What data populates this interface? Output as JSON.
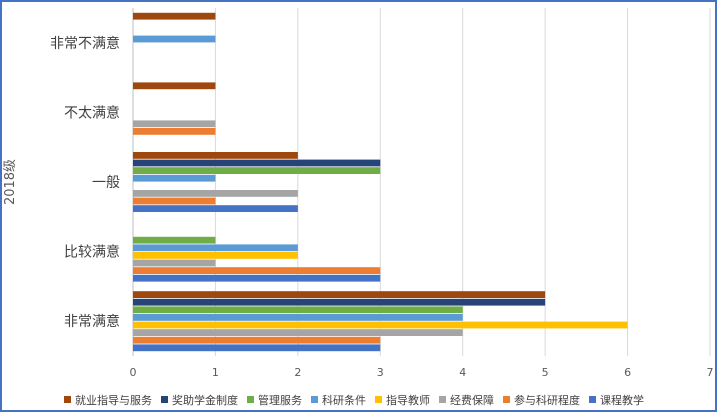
{
  "chart_data": {
    "type": "bar",
    "orientation": "horizontal",
    "ylabel": "2018级",
    "categories": [
      "非常不满意",
      "不太满意",
      "一般",
      "比较满意",
      "非常满意"
    ],
    "xlim": [
      0,
      7
    ],
    "xticks": [
      0,
      1,
      2,
      3,
      4,
      5,
      6,
      7
    ],
    "grid": true,
    "legend_position": "bottom",
    "series": [
      {
        "name": "就业指导与服务",
        "color": "#9e480e",
        "values": [
          1,
          1,
          2,
          0,
          5
        ]
      },
      {
        "name": "奖助学金制度",
        "color": "#264478",
        "values": [
          0,
          0,
          3,
          0,
          5
        ]
      },
      {
        "name": "管理服务",
        "color": "#70ad47",
        "values": [
          0,
          0,
          3,
          1,
          4
        ]
      },
      {
        "name": "科研条件",
        "color": "#5b9bd5",
        "values": [
          1,
          0,
          1,
          2,
          4
        ]
      },
      {
        "name": "指导教师",
        "color": "#ffc000",
        "values": [
          0,
          0,
          0,
          2,
          6
        ]
      },
      {
        "name": "经费保障",
        "color": "#a5a5a5",
        "values": [
          0,
          1,
          2,
          1,
          4
        ]
      },
      {
        "name": "参与科研程度",
        "color": "#ed7d31",
        "values": [
          0,
          1,
          1,
          3,
          3
        ]
      },
      {
        "name": "课程教学",
        "color": "#4472c4",
        "values": [
          0,
          0,
          2,
          3,
          3
        ]
      }
    ]
  }
}
